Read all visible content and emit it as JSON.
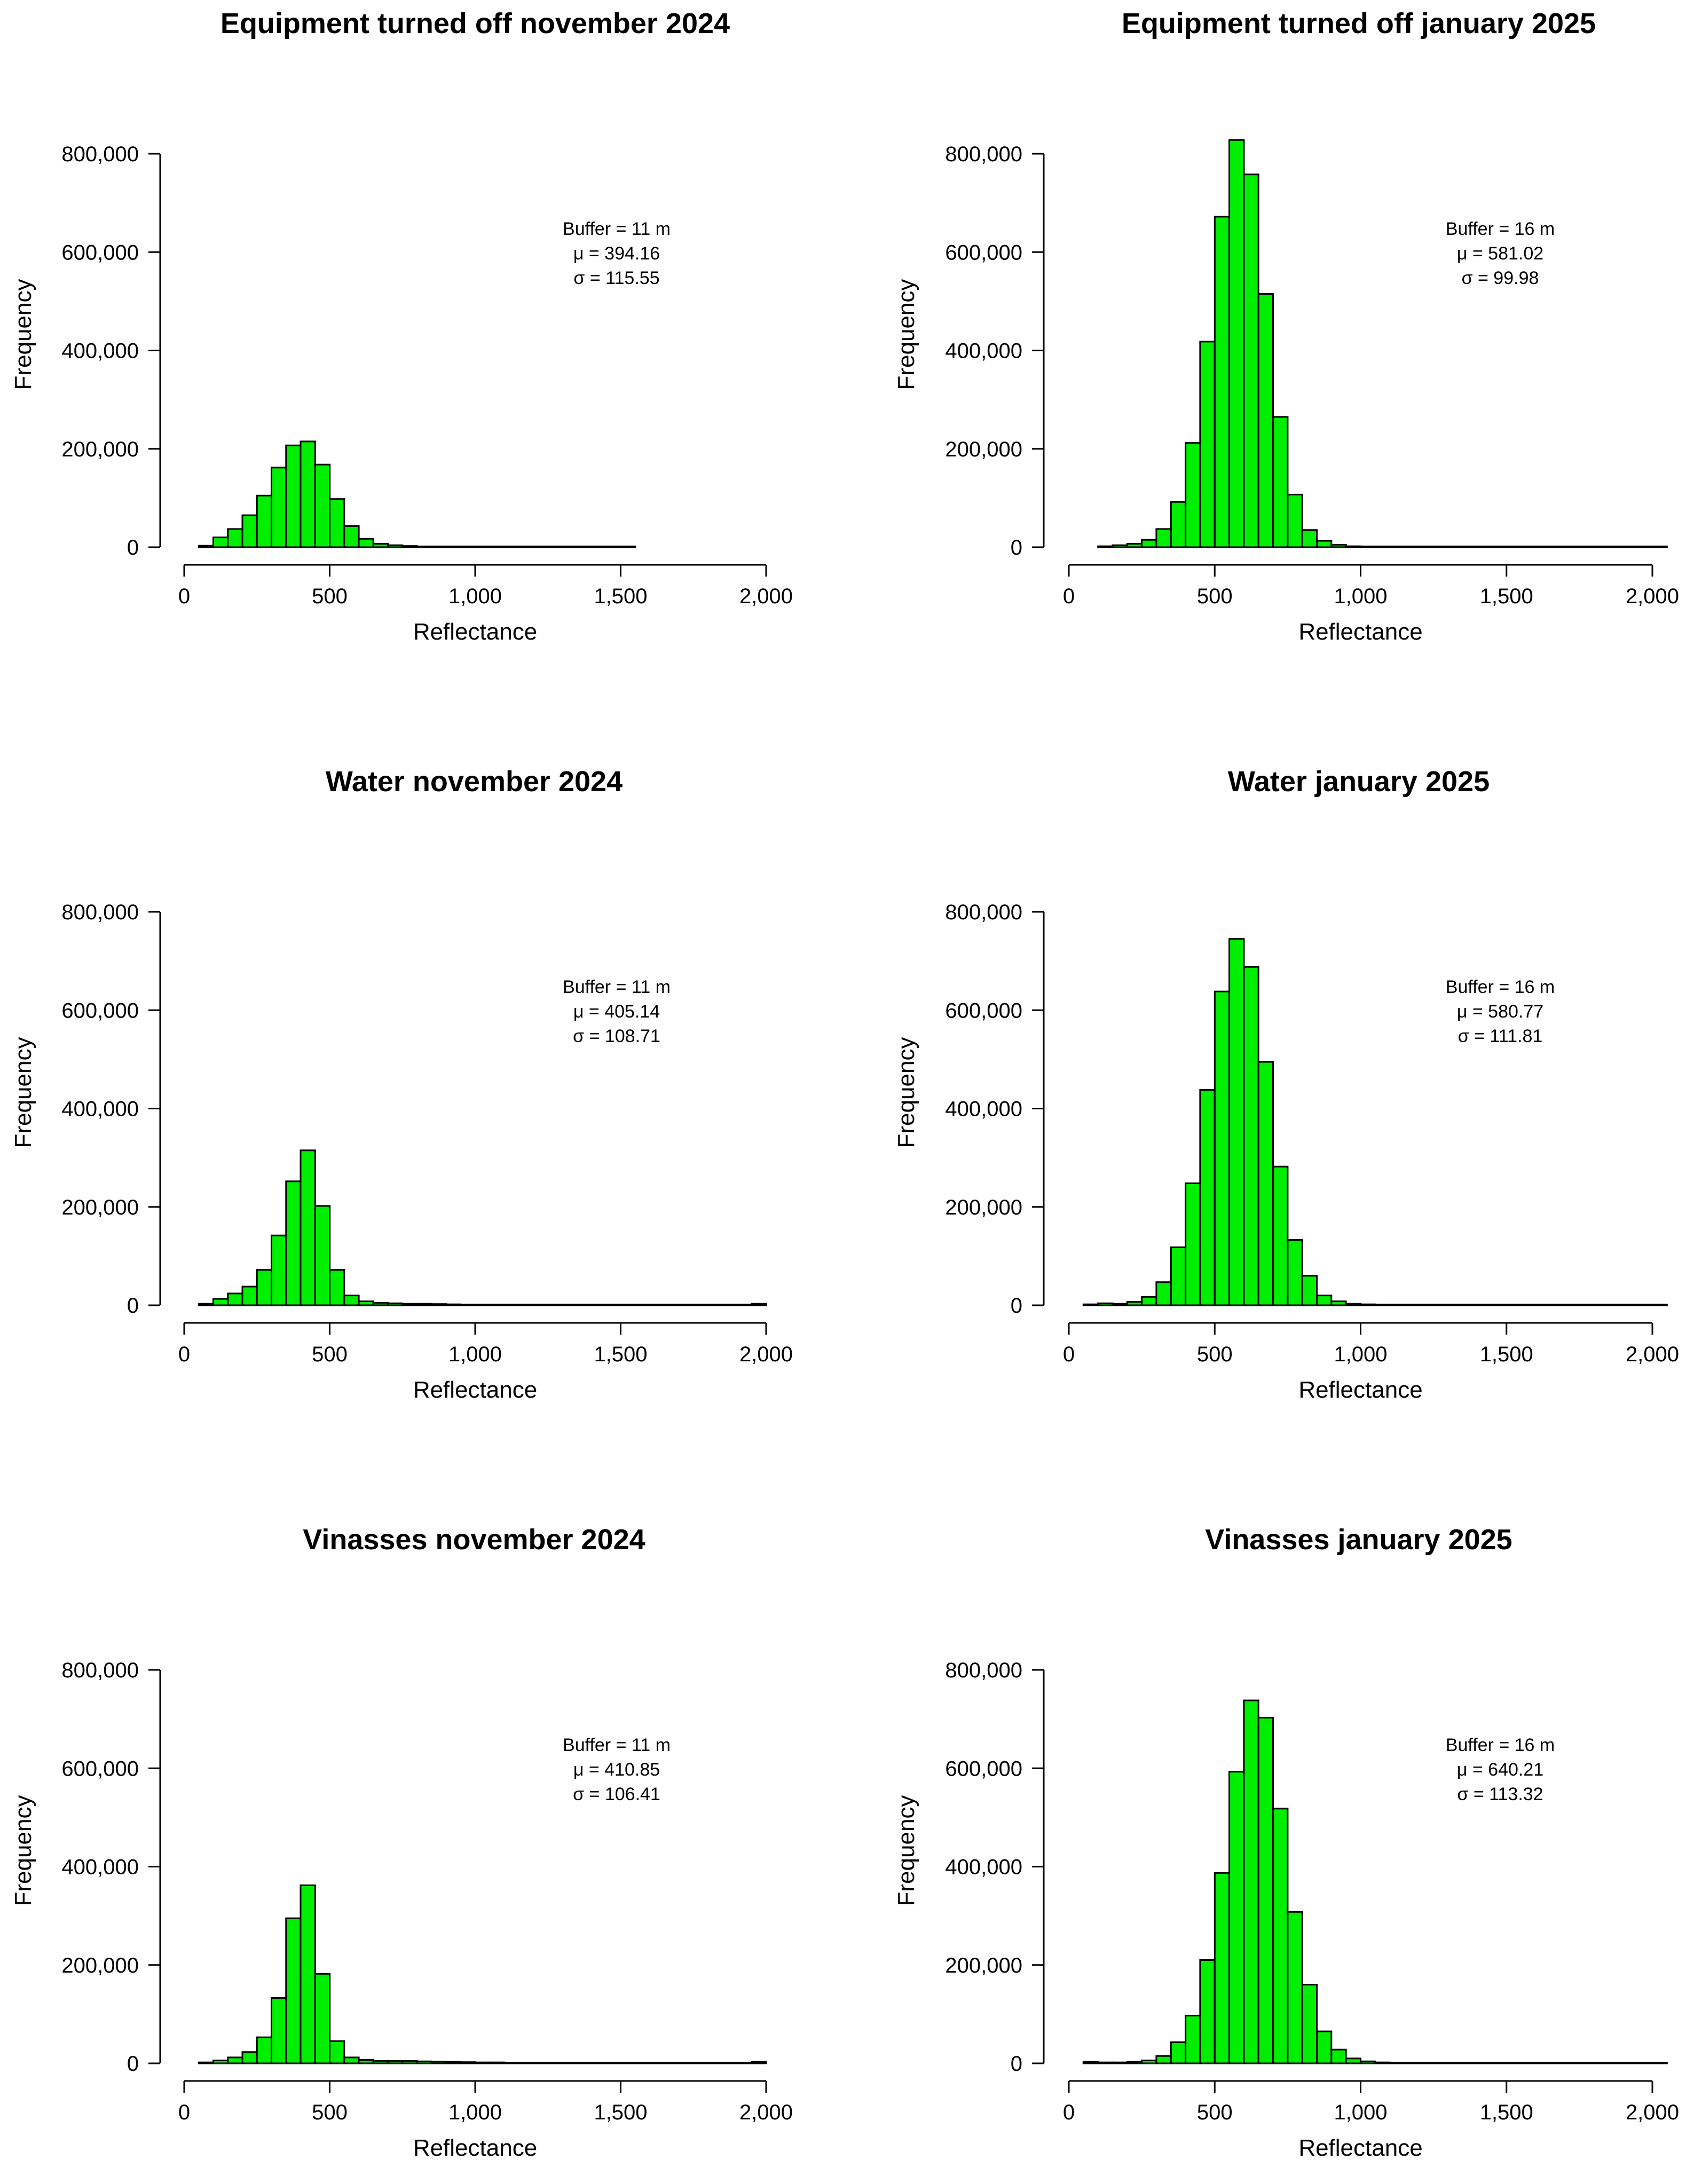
{
  "figure": {
    "bar_color": "#00ee00",
    "bar_stroke": "#000000"
  },
  "chart_data": [
    {
      "type": "bar",
      "title": "Equipment turned off november 2024",
      "xlabel": "Reflectance",
      "ylabel": "Frequency",
      "xlim": [
        0,
        2000
      ],
      "ylim": [
        0,
        800000
      ],
      "xticks": [
        0,
        500,
        1000,
        1500,
        2000
      ],
      "xtick_labels": [
        "0",
        "500",
        "1,000",
        "1,500",
        "2,000"
      ],
      "yticks": [
        0,
        200000,
        400000,
        600000,
        800000
      ],
      "ytick_labels": [
        "0",
        "200,000",
        "400,000",
        "600,000",
        "800,000"
      ],
      "bin_width": 50,
      "bin_starts": [
        50,
        100,
        150,
        200,
        250,
        300,
        350,
        400,
        450,
        500,
        550,
        600,
        650,
        700,
        750,
        800,
        850,
        900,
        950,
        1000,
        1050,
        1100,
        1150,
        1200,
        1250,
        1300,
        1350,
        1400,
        1450,
        1500
      ],
      "values": [
        3000,
        20000,
        37000,
        65000,
        105000,
        162000,
        207000,
        215000,
        168000,
        98000,
        43000,
        17000,
        7000,
        4000,
        2500,
        1500,
        1000,
        800,
        600,
        400,
        300,
        250,
        200,
        150,
        120,
        100,
        80,
        60,
        40,
        20
      ],
      "annotation": {
        "buffer": "Buffer = 11 m",
        "mu": "μ =  394.16",
        "sigma": "σ =  115.55"
      }
    },
    {
      "type": "bar",
      "title": "Equipment turned off january 2025",
      "xlabel": "Reflectance",
      "ylabel": "Frequency",
      "xlim": [
        0,
        2000
      ],
      "ylim": [
        0,
        800000
      ],
      "xticks": [
        0,
        500,
        1000,
        1500,
        2000
      ],
      "xtick_labels": [
        "0",
        "500",
        "1,000",
        "1,500",
        "2,000"
      ],
      "yticks": [
        0,
        200000,
        400000,
        600000,
        800000
      ],
      "ytick_labels": [
        "0",
        "200,000",
        "400,000",
        "600,000",
        "800,000"
      ],
      "bin_width": 50,
      "bin_starts": [
        100,
        150,
        200,
        250,
        300,
        350,
        400,
        450,
        500,
        550,
        600,
        650,
        700,
        750,
        800,
        850,
        900,
        950,
        1000,
        1050,
        1100,
        1150,
        1200,
        1250,
        1300,
        1350,
        1400,
        1450,
        1500,
        1550,
        1600,
        1650,
        1700,
        1750,
        1800,
        1850,
        1900,
        1950,
        2000
      ],
      "values": [
        2000,
        4000,
        7000,
        15000,
        37000,
        92000,
        212000,
        418000,
        672000,
        828000,
        758000,
        515000,
        265000,
        107000,
        35000,
        13000,
        5000,
        2000,
        1000,
        500,
        300,
        200,
        150,
        100,
        100,
        80,
        60,
        50,
        40,
        30,
        30,
        20,
        20,
        20,
        20,
        20,
        20,
        20,
        20
      ],
      "annotation": {
        "buffer": "Buffer = 16 m",
        "mu": "μ =  581.02",
        "sigma": "σ =  99.98"
      }
    },
    {
      "type": "bar",
      "title": "Water november 2024",
      "xlabel": "Reflectance",
      "ylabel": "Frequency",
      "xlim": [
        0,
        2000
      ],
      "ylim": [
        0,
        800000
      ],
      "xticks": [
        0,
        500,
        1000,
        1500,
        2000
      ],
      "xtick_labels": [
        "0",
        "500",
        "1,000",
        "1,500",
        "2,000"
      ],
      "yticks": [
        0,
        200000,
        400000,
        600000,
        800000
      ],
      "ytick_labels": [
        "0",
        "200,000",
        "400,000",
        "600,000",
        "800,000"
      ],
      "bin_width": 50,
      "bin_starts": [
        50,
        100,
        150,
        200,
        250,
        300,
        350,
        400,
        450,
        500,
        550,
        600,
        650,
        700,
        750,
        800,
        850,
        900,
        950,
        1000,
        1050,
        1100,
        1150,
        1200,
        1250,
        1300,
        1350,
        1400,
        1450,
        1500,
        1550,
        1600,
        1650,
        1700,
        1750,
        1800,
        1850,
        1900,
        1950
      ],
      "values": [
        3000,
        13000,
        24000,
        38000,
        72000,
        142000,
        252000,
        315000,
        202000,
        72000,
        20000,
        8000,
        5000,
        4000,
        3000,
        3000,
        2500,
        2000,
        1500,
        1200,
        1000,
        500,
        400,
        300,
        300,
        200,
        200,
        200,
        150,
        150,
        100,
        100,
        100,
        100,
        100,
        100,
        100,
        100,
        3000
      ],
      "annotation": {
        "buffer": "Buffer = 11 m",
        "mu": "μ =  405.14",
        "sigma": "σ =  108.71"
      }
    },
    {
      "type": "bar",
      "title": "Water january 2025",
      "xlabel": "Reflectance",
      "ylabel": "Frequency",
      "xlim": [
        0,
        2000
      ],
      "ylim": [
        0,
        800000
      ],
      "xticks": [
        0,
        500,
        1000,
        1500,
        2000
      ],
      "xtick_labels": [
        "0",
        "500",
        "1,000",
        "1,500",
        "2,000"
      ],
      "yticks": [
        0,
        200000,
        400000,
        600000,
        800000
      ],
      "ytick_labels": [
        "0",
        "200,000",
        "400,000",
        "600,000",
        "800,000"
      ],
      "bin_width": 50,
      "bin_starts": [
        50,
        100,
        150,
        200,
        250,
        300,
        350,
        400,
        450,
        500,
        550,
        600,
        650,
        700,
        750,
        800,
        850,
        900,
        950,
        1000,
        1050,
        1100,
        1150,
        1200,
        1250,
        1300,
        1350,
        1400,
        1450,
        1500,
        1550,
        1600,
        1650,
        1700,
        1750,
        1800,
        1850,
        1900,
        1950,
        2000
      ],
      "values": [
        2000,
        4000,
        3000,
        7000,
        17000,
        47000,
        118000,
        248000,
        438000,
        638000,
        745000,
        688000,
        495000,
        282000,
        133000,
        60000,
        20000,
        8000,
        3000,
        2000,
        1500,
        1000,
        800,
        800,
        600,
        500,
        500,
        400,
        300,
        300,
        200,
        100,
        80,
        60,
        50,
        40,
        30,
        30,
        20,
        20
      ],
      "annotation": {
        "buffer": "Buffer = 16 m",
        "mu": "μ =  580.77",
        "sigma": "σ =  111.81"
      }
    },
    {
      "type": "bar",
      "title": "Vinasses november 2024",
      "xlabel": "Reflectance",
      "ylabel": "Frequency",
      "xlim": [
        0,
        2000
      ],
      "ylim": [
        0,
        800000
      ],
      "xticks": [
        0,
        500,
        1000,
        1500,
        2000
      ],
      "xtick_labels": [
        "0",
        "500",
        "1,000",
        "1,500",
        "2,000"
      ],
      "yticks": [
        0,
        200000,
        400000,
        600000,
        800000
      ],
      "ytick_labels": [
        "0",
        "200,000",
        "400,000",
        "600,000",
        "800,000"
      ],
      "bin_width": 50,
      "bin_starts": [
        50,
        100,
        150,
        200,
        250,
        300,
        350,
        400,
        450,
        500,
        550,
        600,
        650,
        700,
        750,
        800,
        850,
        900,
        950,
        1000,
        1050,
        1100,
        1150,
        1200,
        1250,
        1300,
        1350,
        1400,
        1450,
        1500,
        1550,
        1600,
        1650,
        1700,
        1750,
        1800,
        1850,
        1900,
        1950
      ],
      "values": [
        2000,
        6000,
        12000,
        23000,
        53000,
        133000,
        295000,
        362000,
        182000,
        45000,
        12000,
        7000,
        5000,
        5000,
        5000,
        4000,
        3500,
        3000,
        2500,
        2000,
        2000,
        1500,
        1500,
        1500,
        1200,
        1200,
        1000,
        1000,
        800,
        800,
        500,
        300,
        300,
        200,
        200,
        200,
        200,
        200,
        3000
      ],
      "annotation": {
        "buffer": "Buffer = 11 m",
        "mu": "μ =  410.85",
        "sigma": "σ =  106.41"
      }
    },
    {
      "type": "bar",
      "title": "Vinasses january 2025",
      "xlabel": "Reflectance",
      "ylabel": "Frequency",
      "xlim": [
        0,
        2000
      ],
      "ylim": [
        0,
        800000
      ],
      "xticks": [
        0,
        500,
        1000,
        1500,
        2000
      ],
      "xtick_labels": [
        "0",
        "500",
        "1,000",
        "1,500",
        "2,000"
      ],
      "yticks": [
        0,
        200000,
        400000,
        600000,
        800000
      ],
      "ytick_labels": [
        "0",
        "200,000",
        "400,000",
        "600,000",
        "800,000"
      ],
      "bin_width": 50,
      "bin_starts": [
        50,
        100,
        150,
        200,
        250,
        300,
        350,
        400,
        450,
        500,
        550,
        600,
        650,
        700,
        750,
        800,
        850,
        900,
        950,
        1000,
        1050,
        1100,
        1150,
        1200,
        1250,
        1300,
        1350,
        1400,
        1450,
        1500,
        1550,
        1600,
        1650,
        1700,
        1750,
        1800,
        1850,
        1900,
        1950,
        2000
      ],
      "values": [
        3000,
        2000,
        2000,
        3000,
        6000,
        15000,
        43000,
        97000,
        210000,
        387000,
        593000,
        738000,
        703000,
        518000,
        308000,
        160000,
        65000,
        28000,
        10000,
        4000,
        2000,
        1500,
        1500,
        1200,
        1200,
        1000,
        1000,
        800,
        800,
        700,
        600,
        500,
        500,
        400,
        300,
        100,
        50,
        40,
        30,
        20
      ],
      "annotation": {
        "buffer": "Buffer = 16 m",
        "mu": "μ =  640.21",
        "sigma": "σ =  113.32"
      }
    }
  ]
}
